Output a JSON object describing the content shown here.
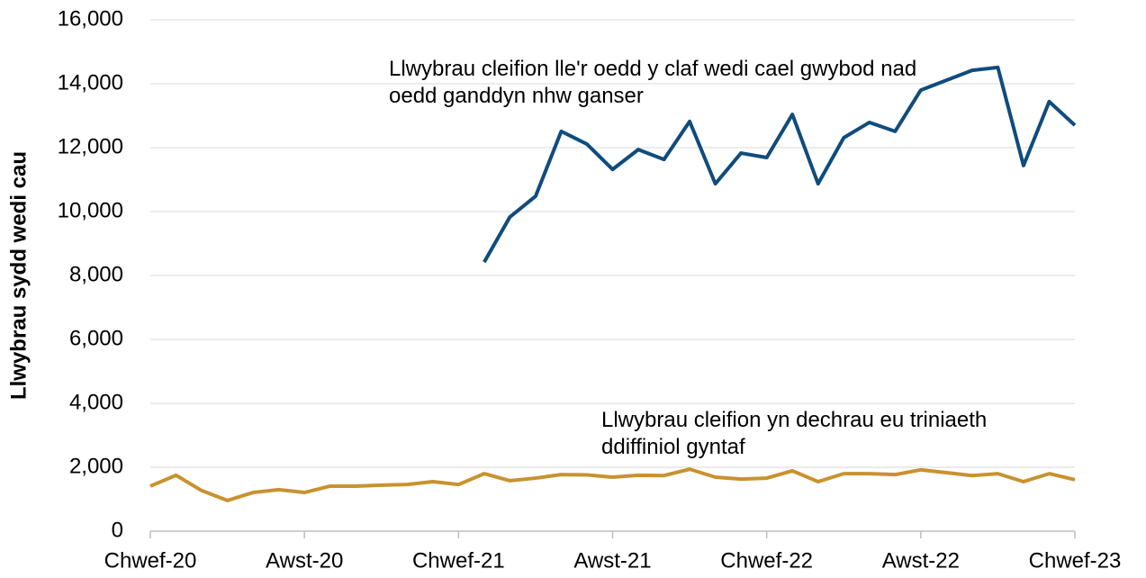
{
  "chart_data": {
    "type": "line",
    "y_axis_label": "Llwybrau sydd wedi cau",
    "categories": [
      "Chwef-20",
      null,
      null,
      null,
      null,
      null,
      "Awst-20",
      null,
      null,
      null,
      null,
      null,
      "Chwef-21",
      null,
      null,
      null,
      null,
      null,
      "Awst-21",
      null,
      null,
      null,
      null,
      null,
      "Chwef-22",
      null,
      null,
      null,
      null,
      null,
      "Awst-22",
      null,
      null,
      null,
      null,
      null,
      "Chwef-23"
    ],
    "series": [
      {
        "name": "Llwybrau cleifion lle'r oedd y claf wedi cael gwybod nad oedd ganddyn nhw ganser",
        "color": "#0f4c7d",
        "values": [
          null,
          null,
          null,
          null,
          null,
          null,
          null,
          null,
          null,
          null,
          null,
          null,
          null,
          8420,
          9830,
          10480,
          12510,
          12110,
          11320,
          11940,
          11630,
          12820,
          10870,
          11830,
          11690,
          13040,
          10870,
          12310,
          12790,
          12510,
          13800,
          14110,
          14420,
          14510,
          11440,
          13440,
          12700
        ]
      },
      {
        "name": "Llwybrau cleifion yn dechrau eu triniaeth ddiffiniol gyntaf",
        "color": "#c9922f",
        "values": [
          1410,
          1750,
          1270,
          960,
          1210,
          1300,
          1210,
          1410,
          1410,
          1440,
          1460,
          1550,
          1460,
          1800,
          1580,
          1660,
          1770,
          1760,
          1690,
          1750,
          1740,
          1940,
          1690,
          1630,
          1660,
          1890,
          1550,
          1800,
          1800,
          1770,
          1920,
          1830,
          1740,
          1800,
          1550,
          1800,
          1610
        ]
      }
    ],
    "ylim": [
      0,
      16000
    ],
    "yticks": [
      0,
      {
        "value": 2000,
        "label": "2,000"
      },
      {
        "value": 4000,
        "label": "4,000"
      },
      {
        "value": 6000,
        "label": "6,000"
      },
      {
        "value": 8000,
        "label": "8,000"
      },
      {
        "value": 10000,
        "label": "10,000"
      },
      {
        "value": 12000,
        "label": "12,000"
      },
      {
        "value": 14000,
        "label": "14,000"
      },
      {
        "value": 16000,
        "label": "16,000"
      }
    ],
    "grid": true
  }
}
